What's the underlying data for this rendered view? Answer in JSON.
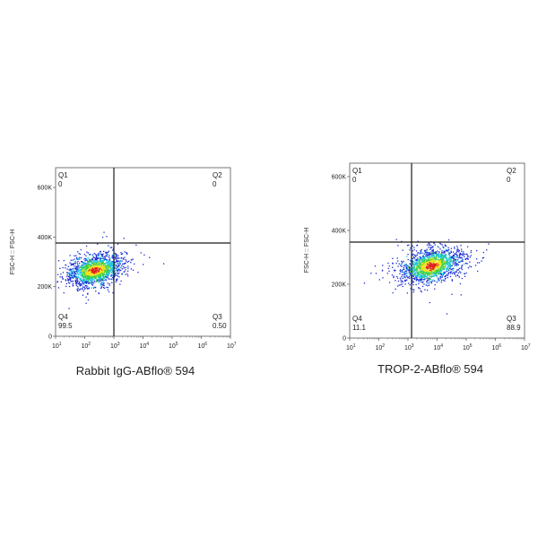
{
  "chart_data": [
    {
      "type": "scatter",
      "subtype": "flow-cytometry-density-dot-plot",
      "xlabel": "Rabbit IgG-ABflo® 594",
      "ylabel": "FSC-H :: FSC-H",
      "x_scale": "log",
      "x_ticks": [
        {
          "base": "10",
          "exp": "1"
        },
        {
          "base": "10",
          "exp": "2"
        },
        {
          "base": "10",
          "exp": "3"
        },
        {
          "base": "10",
          "exp": "4"
        },
        {
          "base": "10",
          "exp": "5"
        },
        {
          "base": "10",
          "exp": "6"
        },
        {
          "base": "10",
          "exp": "7"
        }
      ],
      "y_ticks": [
        "0",
        "200K",
        "400K",
        "600K"
      ],
      "xlim": [
        10,
        10000000
      ],
      "ylim": [
        0,
        680000
      ],
      "gate": {
        "x": 1200,
        "y": 360000
      },
      "quadrants": [
        {
          "name": "Q1",
          "value": "0"
        },
        {
          "name": "Q2",
          "value": "0"
        },
        {
          "name": "Q3",
          "value": "0.50"
        },
        {
          "name": "Q4",
          "value": "99.5"
        }
      ],
      "population": {
        "x_center": 220,
        "y_center": 268000,
        "x_spread_decades": 0.45,
        "y_spread": 28000,
        "tilt": 0.2
      },
      "colors": {
        "low": "#1a2bd6",
        "mid": "#18c6e8",
        "mid2": "#38d04a",
        "high": "#f0e21a",
        "peak": "#e2231f"
      }
    },
    {
      "type": "scatter",
      "subtype": "flow-cytometry-density-dot-plot",
      "xlabel": "TROP-2-ABflo® 594",
      "ylabel": "FSC-H :: FSC-H",
      "x_scale": "log",
      "x_ticks": [
        {
          "base": "10",
          "exp": "1"
        },
        {
          "base": "10",
          "exp": "2"
        },
        {
          "base": "10",
          "exp": "3"
        },
        {
          "base": "10",
          "exp": "4"
        },
        {
          "base": "10",
          "exp": "5"
        },
        {
          "base": "10",
          "exp": "6"
        },
        {
          "base": "10",
          "exp": "7"
        }
      ],
      "y_ticks": [
        "0",
        "200K",
        "400K",
        "600K"
      ],
      "xlim": [
        10,
        10000000
      ],
      "ylim": [
        0,
        650000
      ],
      "gate": {
        "x": 1200,
        "y": 360000
      },
      "quadrants": [
        {
          "name": "Q1",
          "value": "0"
        },
        {
          "name": "Q2",
          "value": "0"
        },
        {
          "name": "Q3",
          "value": "88.9"
        },
        {
          "name": "Q4",
          "value": "11.1"
        }
      ],
      "population": {
        "x_center": 6000,
        "y_center": 270000,
        "x_spread_decades": 0.5,
        "y_spread": 28000,
        "tilt": 0.2
      },
      "colors": {
        "low": "#1a2bd6",
        "mid": "#18c6e8",
        "mid2": "#38d04a",
        "high": "#f0e21a",
        "peak": "#e2231f"
      }
    }
  ]
}
